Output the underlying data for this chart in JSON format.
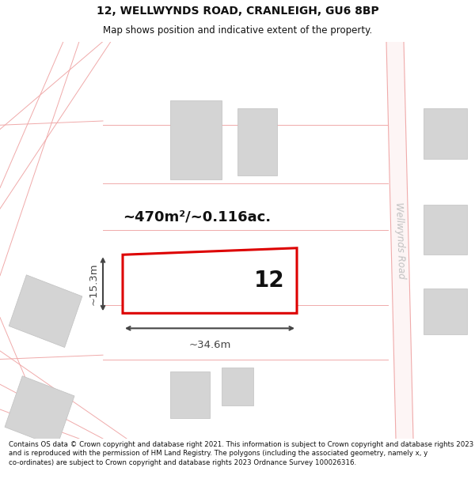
{
  "title_line1": "12, WELLWYNDS ROAD, CRANLEIGH, GU6 8BP",
  "title_line2": "Map shows position and indicative extent of the property.",
  "footer_text": "Contains OS data © Crown copyright and database right 2021. This information is subject to Crown copyright and database rights 2023 and is reproduced with the permission of HM Land Registry. The polygons (including the associated geometry, namely x, y co-ordinates) are subject to Crown copyright and database rights 2023 Ordnance Survey 100026316.",
  "bg_color": "#ffffff",
  "road_line": "#f0aaaa",
  "building_fill": "#d4d4d4",
  "building_edge": "#c0c0c0",
  "highlight_edge": "#dd0000",
  "highlight_fill": "#ffffff",
  "road_label": "Wellwynds Road",
  "road_label_color": "#c0c0c0",
  "prop_num": "12",
  "area_text": "~470m²/~0.116ac.",
  "width_text": "~34.6m",
  "height_text": "~15.3m",
  "dim_color": "#444444",
  "title_fontsize": 10,
  "subtitle_fontsize": 8.5,
  "footer_fontsize": 6.2,
  "prop_num_fontsize": 20,
  "area_fontsize": 13,
  "dim_fontsize": 9.5,
  "road_fontsize": 8.5
}
